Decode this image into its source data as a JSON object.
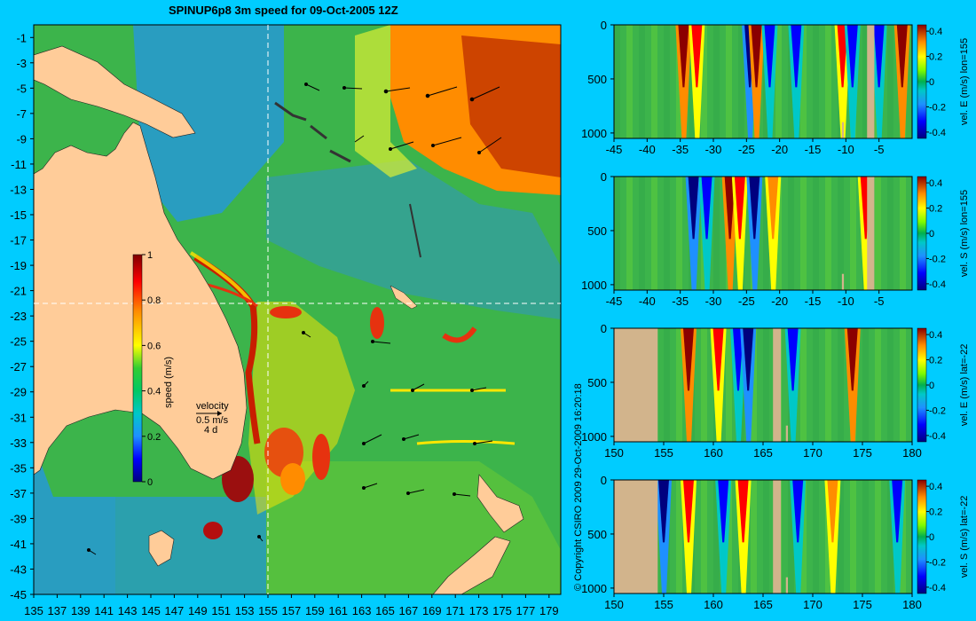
{
  "title": "SPINUP6p8 3m speed for 09-Oct-2005 12Z",
  "copyright": "© Copyright CSIRO 2009   29-Oct-2009 16:20:18",
  "colors": {
    "background": "#00CCFF",
    "land": "#FFCC99",
    "section_land": "#D2B48C",
    "colormap": [
      "#00007F",
      "#0000FF",
      "#1E90FF",
      "#00C8C8",
      "#00C864",
      "#32CD32",
      "#FFFF00",
      "#FF8C00",
      "#FF0000",
      "#7F0000"
    ]
  },
  "chart_data": [
    {
      "type": "heatmap",
      "name": "surface-speed-map",
      "title": "SPINUP6p8 3m speed for 09-Oct-2005 12Z",
      "x_ticks": [
        "135",
        "137",
        "139",
        "141",
        "143",
        "145",
        "147",
        "149",
        "151",
        "153",
        "155",
        "157",
        "159",
        "161",
        "163",
        "165",
        "167",
        "169",
        "171",
        "173",
        "175",
        "177",
        "179"
      ],
      "y_ticks": [
        "-1",
        "-3",
        "-5",
        "-7",
        "-9",
        "-11",
        "-13",
        "-15",
        "-17",
        "-19",
        "-21",
        "-23",
        "-25",
        "-27",
        "-29",
        "-31",
        "-33",
        "-35",
        "-37",
        "-39",
        "-41",
        "-43",
        "-45"
      ],
      "xlim": [
        135,
        180
      ],
      "ylim": [
        -45,
        0
      ],
      "section_lon": 155,
      "section_lat": -22,
      "colorbar": {
        "label": "speed (m/s)",
        "ticks": [
          "1",
          "0.8",
          "0.6",
          "0.4",
          "0.2",
          "0"
        ],
        "range": [
          0,
          1
        ]
      },
      "velocity_key": {
        "label": "velocity",
        "magnitude": "0.5 m/s",
        "duration": "4 d"
      }
    },
    {
      "type": "heatmap",
      "name": "vel-e-lon155",
      "x_ticks": [
        "-45",
        "-40",
        "-35",
        "-30",
        "-25",
        "-20",
        "-15",
        "-10",
        "-5"
      ],
      "y_ticks": [
        "0",
        "500",
        "1000"
      ],
      "xlim": [
        -45,
        0
      ],
      "ylim": [
        1050,
        0
      ],
      "colorbar": {
        "label": "vel. E (m/s) lon=155",
        "ticks": [
          "0.4",
          "0.2",
          "0",
          "-0.2",
          "-0.4"
        ],
        "range": [
          -0.45,
          0.45
        ]
      },
      "features": [
        {
          "x": -34.5,
          "value": 0.4
        },
        {
          "x": -32.5,
          "value": 0.3
        },
        {
          "x": -24.5,
          "value": -0.45
        },
        {
          "x": -23.5,
          "value": 0.4
        },
        {
          "x": -21.5,
          "value": -0.3
        },
        {
          "x": -17.5,
          "value": -0.3
        },
        {
          "x": -10.5,
          "value": 0.3
        },
        {
          "x": -9,
          "value": -0.3
        },
        {
          "x": -5,
          "value": -0.3
        },
        {
          "x": -1.5,
          "value": 0.45
        }
      ],
      "land": [
        {
          "from": -6.8,
          "to": -5.7,
          "depth": 0
        },
        {
          "from": -10.6,
          "to": -10.3,
          "depth": 900
        }
      ]
    },
    {
      "type": "heatmap",
      "name": "vel-s-lon155",
      "x_ticks": [
        "-45",
        "-40",
        "-35",
        "-30",
        "-25",
        "-20",
        "-15",
        "-10",
        "-5"
      ],
      "y_ticks": [
        "0",
        "500",
        "1000"
      ],
      "xlim": [
        -45,
        0
      ],
      "ylim": [
        1050,
        0
      ],
      "colorbar": {
        "label": "vel. S (m/s) lon=155",
        "ticks": [
          "0.4",
          "0.2",
          "0",
          "-0.2",
          "-0.4"
        ],
        "range": [
          -0.45,
          0.45
        ]
      },
      "features": [
        {
          "x": -33,
          "value": -0.45
        },
        {
          "x": -31,
          "value": -0.3
        },
        {
          "x": -27.5,
          "value": 0.45
        },
        {
          "x": -26,
          "value": 0.3
        },
        {
          "x": -23.8,
          "value": -0.4
        },
        {
          "x": -21,
          "value": 0.2
        },
        {
          "x": -7,
          "value": 0.3
        }
      ],
      "land": [
        {
          "from": -6.8,
          "to": -5.7,
          "depth": 0
        },
        {
          "from": -10.6,
          "to": -10.3,
          "depth": 900
        }
      ]
    },
    {
      "type": "heatmap",
      "name": "vel-e-lat-22",
      "x_ticks": [
        "150",
        "155",
        "160",
        "165",
        "170",
        "175",
        "180"
      ],
      "y_ticks": [
        "0",
        "500",
        "1000"
      ],
      "xlim": [
        150,
        180
      ],
      "ylim": [
        1050,
        0
      ],
      "colorbar": {
        "label": "vel. E (m/s) lat=-22",
        "ticks": [
          "0.4",
          "0.2",
          "0",
          "-0.2",
          "-0.4"
        ],
        "range": [
          -0.45,
          0.45
        ]
      },
      "features": [
        {
          "x": 157.5,
          "value": 0.45
        },
        {
          "x": 160.5,
          "value": 0.3
        },
        {
          "x": 162.5,
          "value": -0.3
        },
        {
          "x": 163.5,
          "value": -0.45
        },
        {
          "x": 168,
          "value": -0.3
        },
        {
          "x": 174,
          "value": 0.45
        }
      ],
      "land": [
        {
          "from": 150,
          "to": 154.4,
          "depth": 0
        },
        {
          "from": 166,
          "to": 166.8,
          "depth": 0
        },
        {
          "from": 167.3,
          "to": 167.5,
          "depth": 900
        }
      ]
    },
    {
      "type": "heatmap",
      "name": "vel-s-lat-22",
      "x_ticks": [
        "150",
        "155",
        "160",
        "165",
        "170",
        "175",
        "180"
      ],
      "y_ticks": [
        "0",
        "500",
        "1000"
      ],
      "xlim": [
        150,
        180
      ],
      "ylim": [
        1050,
        0
      ],
      "colorbar": {
        "label": "vel. S (m/s) lat=-22",
        "ticks": [
          "0.4",
          "0.2",
          "0",
          "-0.2",
          "-0.4"
        ],
        "range": [
          -0.45,
          0.45
        ]
      },
      "features": [
        {
          "x": 155,
          "value": -0.4
        },
        {
          "x": 157.5,
          "value": 0.3
        },
        {
          "x": 161,
          "value": -0.3
        },
        {
          "x": 163,
          "value": 0.3
        },
        {
          "x": 168.5,
          "value": -0.3
        },
        {
          "x": 172,
          "value": 0.2
        },
        {
          "x": 178.5,
          "value": -0.3
        }
      ],
      "land": [
        {
          "from": 150,
          "to": 154.4,
          "depth": 0
        },
        {
          "from": 166,
          "to": 166.8,
          "depth": 0
        },
        {
          "from": 167.3,
          "to": 167.5,
          "depth": 900
        }
      ]
    }
  ]
}
